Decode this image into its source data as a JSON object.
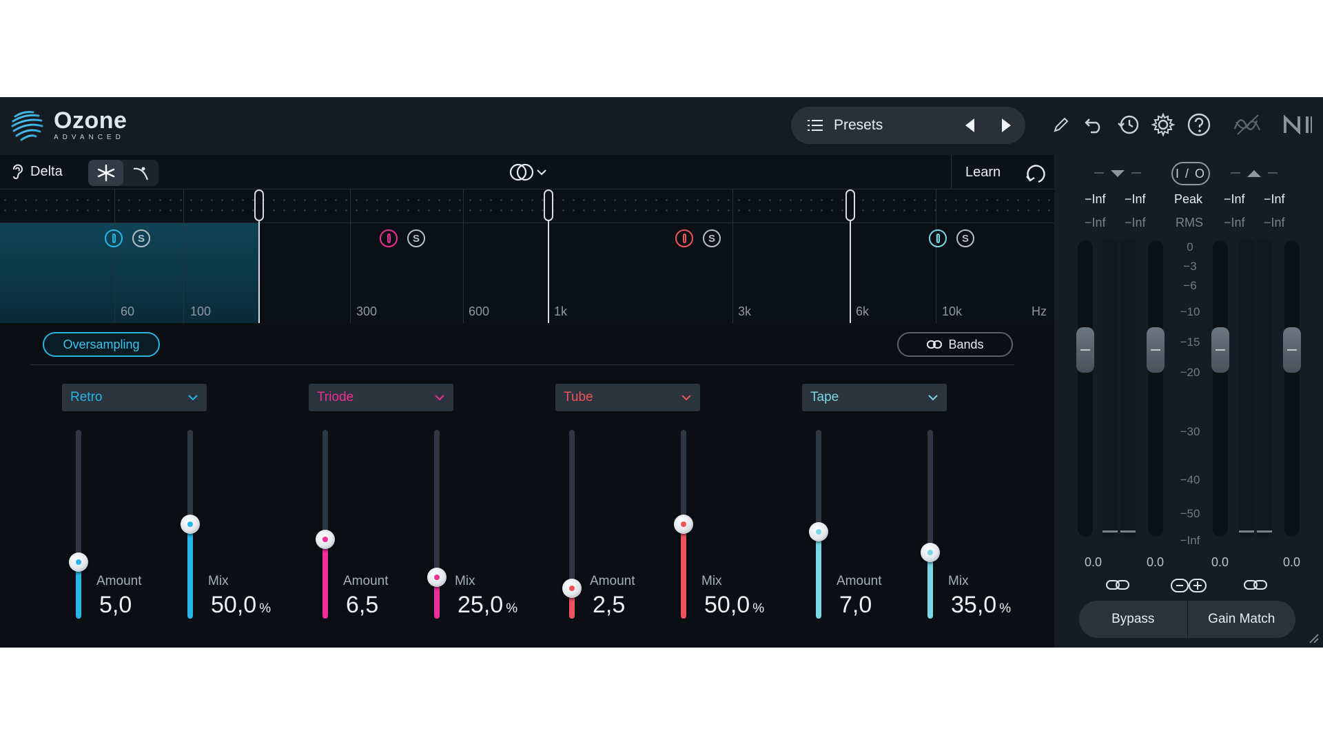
{
  "app": {
    "name": "Ozone",
    "edition": "ADVANCED"
  },
  "header": {
    "presets_label": "Presets",
    "icons": [
      "list-icon",
      "prev-arrow-icon",
      "next-arrow-icon",
      "pencil-icon",
      "undo-icon",
      "history-icon",
      "gear-icon",
      "help-icon",
      "signal-icon",
      "ni-logo"
    ]
  },
  "toolbar": {
    "delta_label": "Delta",
    "learn_label": "Learn"
  },
  "spectrum": {
    "freq_labels": [
      "60",
      "100",
      "300",
      "600",
      "1k",
      "3k",
      "6k",
      "10k",
      "Hz"
    ]
  },
  "bands_panel": {
    "oversampling_label": "Oversampling",
    "bands_label": "Bands"
  },
  "modules": [
    {
      "type": "Retro",
      "color": "#27b7e6",
      "amount_label": "Amount",
      "amount_value": "5,0",
      "amount_level": 0.3,
      "mix_label": "Mix",
      "mix_value": "50,0",
      "mix_unit": "%",
      "mix_level": 0.5
    },
    {
      "type": "Triode",
      "color": "#ef2f98",
      "amount_label": "Amount",
      "amount_value": "6,5",
      "amount_level": 0.42,
      "mix_label": "Mix",
      "mix_value": "25,0",
      "mix_unit": "%",
      "mix_level": 0.22
    },
    {
      "type": "Tube",
      "color": "#f0545a",
      "amount_label": "Amount",
      "amount_value": "2,5",
      "amount_level": 0.16,
      "mix_label": "Mix",
      "mix_value": "50,0",
      "mix_unit": "%",
      "mix_level": 0.5
    },
    {
      "type": "Tape",
      "color": "#7ad8e6",
      "amount_label": "Amount",
      "amount_value": "7,0",
      "amount_level": 0.46,
      "mix_label": "Mix",
      "mix_value": "35,0",
      "mix_unit": "%",
      "mix_level": 0.35
    }
  ],
  "meters": {
    "io_label": "I / O",
    "peak_label": "Peak",
    "rms_label": "RMS",
    "peak_values": [
      "−Inf",
      "−Inf",
      "−Inf",
      "−Inf"
    ],
    "rms_values": [
      "−Inf",
      "−Inf",
      "−Inf",
      "−Inf"
    ],
    "scale": [
      "0",
      "−3",
      "−6",
      "−10",
      "−15",
      "−20",
      "−30",
      "−40",
      "−50",
      "−Inf"
    ],
    "gain_values": [
      "0.0",
      "0.0",
      "0.0",
      "0.0"
    ],
    "bypass_label": "Bypass",
    "gain_match_label": "Gain Match"
  }
}
